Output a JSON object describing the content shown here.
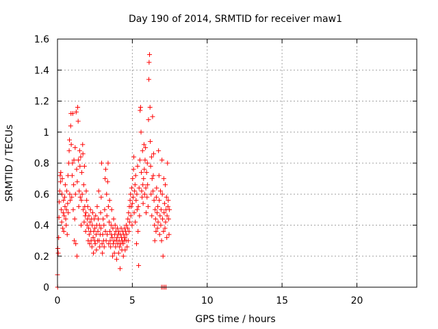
{
  "chart_data": {
    "type": "scatter",
    "title": "Day 190 of 2014, SRMTID for receiver maw1",
    "xlabel": "GPS time / hours",
    "ylabel": "SRMTID / TECUs",
    "xlim": [
      0,
      24
    ],
    "ylim": [
      0,
      1.6
    ],
    "xticks": [
      0,
      5,
      10,
      15,
      20
    ],
    "yticks": [
      0,
      0.2,
      0.4,
      0.6,
      0.8,
      1,
      1.2,
      1.4,
      1.6
    ],
    "ytick_labels": [
      "0",
      "0.2",
      "0.4",
      "0.6",
      "0.8",
      "1",
      "1.2",
      "1.4",
      "1.6"
    ],
    "grid": true,
    "marker": "+",
    "series": [
      {
        "color": "#ff0000",
        "points": [
          [
            0.0,
            0.08
          ],
          [
            0.02,
            0.25
          ],
          [
            0.05,
            0.22
          ],
          [
            0.08,
            0.32
          ],
          [
            0.1,
            0.45
          ],
          [
            0.12,
            0.55
          ],
          [
            0.15,
            0.62
          ],
          [
            0.18,
            0.72
          ],
          [
            0.2,
            0.68
          ],
          [
            0.22,
            0.74
          ],
          [
            0.25,
            0.5
          ],
          [
            0.28,
            0.42
          ],
          [
            0.3,
            0.6
          ],
          [
            0.32,
            0.7
          ],
          [
            0.35,
            0.38
          ],
          [
            0.38,
            0.48
          ],
          [
            0.4,
            0.56
          ],
          [
            0.42,
            0.36
          ],
          [
            0.45,
            0.46
          ],
          [
            0.48,
            0.58
          ],
          [
            0.5,
            0.52
          ],
          [
            0.52,
            0.66
          ],
          [
            0.55,
            0.44
          ],
          [
            0.58,
            0.4
          ],
          [
            0.6,
            0.5
          ],
          [
            0.62,
            0.62
          ],
          [
            0.65,
            0.34
          ],
          [
            0.68,
            0.54
          ],
          [
            0.7,
            0.72
          ],
          [
            0.72,
            0.48
          ],
          [
            0.75,
            0.8
          ],
          [
            0.78,
            0.88
          ],
          [
            0.8,
            0.95
          ],
          [
            0.82,
            0.6
          ],
          [
            0.85,
            0.56
          ],
          [
            0.88,
            1.04
          ],
          [
            0.9,
            1.12
          ],
          [
            0.92,
            0.92
          ],
          [
            0.95,
            0.58
          ],
          [
            0.98,
            0.72
          ],
          [
            1.0,
            0.8
          ],
          [
            1.02,
            1.12
          ],
          [
            1.05,
            0.5
          ],
          [
            1.08,
            0.66
          ],
          [
            1.1,
            0.82
          ],
          [
            1.12,
            0.3
          ],
          [
            1.15,
            0.44
          ],
          [
            1.18,
            0.9
          ],
          [
            1.2,
            0.6
          ],
          [
            1.22,
            0.28
          ],
          [
            1.25,
            1.13
          ],
          [
            1.28,
            0.76
          ],
          [
            1.3,
            0.2
          ],
          [
            1.32,
            0.68
          ],
          [
            1.35,
            1.16
          ],
          [
            1.38,
            1.07
          ],
          [
            1.4,
            0.82
          ],
          [
            1.42,
            0.52
          ],
          [
            1.45,
            0.62
          ],
          [
            1.48,
            0.88
          ],
          [
            1.5,
            0.78
          ],
          [
            1.52,
            0.58
          ],
          [
            1.55,
            0.84
          ],
          [
            1.58,
            0.4
          ],
          [
            1.6,
            0.56
          ],
          [
            1.62,
            0.74
          ],
          [
            1.65,
            0.6
          ],
          [
            1.68,
            0.92
          ],
          [
            1.7,
            0.86
          ],
          [
            1.72,
            0.5
          ],
          [
            1.75,
            0.66
          ],
          [
            1.78,
            0.42
          ],
          [
            1.8,
            0.78
          ],
          [
            1.82,
            0.52
          ],
          [
            1.85,
            0.46
          ],
          [
            1.88,
            0.36
          ],
          [
            1.9,
            0.48
          ],
          [
            1.92,
            0.62
          ],
          [
            1.95,
            0.56
          ],
          [
            1.98,
            0.4
          ],
          [
            2.0,
            0.44
          ],
          [
            2.02,
            0.52
          ],
          [
            2.05,
            0.3
          ],
          [
            2.08,
            0.38
          ],
          [
            2.1,
            0.46
          ],
          [
            2.12,
            0.34
          ],
          [
            2.15,
            0.28
          ],
          [
            2.18,
            0.42
          ],
          [
            2.2,
            0.5
          ],
          [
            2.22,
            0.36
          ],
          [
            2.25,
            0.3
          ],
          [
            2.28,
            0.44
          ],
          [
            2.3,
            0.26
          ],
          [
            2.32,
            0.4
          ],
          [
            2.35,
            0.48
          ],
          [
            2.38,
            0.32
          ],
          [
            2.4,
            0.22
          ],
          [
            2.42,
            0.36
          ],
          [
            2.45,
            0.44
          ],
          [
            2.48,
            0.3
          ],
          [
            2.5,
            0.38
          ],
          [
            2.52,
            0.28
          ],
          [
            2.55,
            0.46
          ],
          [
            2.58,
            0.34
          ],
          [
            2.6,
            0.24
          ],
          [
            2.62,
            0.4
          ],
          [
            2.65,
            0.52
          ],
          [
            2.68,
            0.3
          ],
          [
            2.7,
            0.36
          ],
          [
            2.72,
            0.44
          ],
          [
            2.75,
            0.62
          ],
          [
            2.78,
            0.3
          ],
          [
            2.8,
            0.4
          ],
          [
            2.82,
            0.26
          ],
          [
            2.85,
            0.34
          ],
          [
            2.88,
            0.48
          ],
          [
            2.9,
            0.38
          ],
          [
            2.92,
            0.58
          ],
          [
            2.95,
            0.8
          ],
          [
            2.98,
            0.28
          ],
          [
            3.0,
            0.22
          ],
          [
            3.02,
            0.34
          ],
          [
            3.05,
            0.44
          ],
          [
            3.08,
            0.3
          ],
          [
            3.1,
            0.4
          ],
          [
            3.12,
            0.26
          ],
          [
            3.15,
            0.5
          ],
          [
            3.18,
            0.7
          ],
          [
            3.2,
            0.36
          ],
          [
            3.22,
            0.76
          ],
          [
            3.25,
            0.3
          ],
          [
            3.28,
            0.6
          ],
          [
            3.3,
            0.46
          ],
          [
            3.32,
            0.34
          ],
          [
            3.35,
            0.68
          ],
          [
            3.38,
            0.8
          ],
          [
            3.4,
            0.52
          ],
          [
            3.42,
            0.28
          ],
          [
            3.45,
            0.42
          ],
          [
            3.48,
            0.56
          ],
          [
            3.5,
            0.36
          ],
          [
            3.52,
            0.3
          ],
          [
            3.55,
            0.26
          ],
          [
            3.58,
            0.4
          ],
          [
            3.6,
            0.34
          ],
          [
            3.62,
            0.5
          ],
          [
            3.65,
            0.32
          ],
          [
            3.68,
            0.2
          ],
          [
            3.7,
            0.38
          ],
          [
            3.72,
            0.28
          ],
          [
            3.75,
            0.44
          ],
          [
            3.78,
            0.3
          ],
          [
            3.8,
            0.22
          ],
          [
            3.82,
            0.34
          ],
          [
            3.85,
            0.4
          ],
          [
            3.88,
            0.26
          ],
          [
            3.9,
            0.36
          ],
          [
            3.92,
            0.3
          ],
          [
            3.95,
            0.18
          ],
          [
            3.98,
            0.32
          ],
          [
            4.0,
            0.38
          ],
          [
            4.02,
            0.28
          ],
          [
            4.05,
            0.34
          ],
          [
            4.08,
            0.22
          ],
          [
            4.1,
            0.36
          ],
          [
            4.12,
            0.3
          ],
          [
            4.15,
            0.26
          ],
          [
            4.18,
            0.12
          ],
          [
            4.2,
            0.34
          ],
          [
            4.22,
            0.28
          ],
          [
            4.25,
            0.38
          ],
          [
            4.28,
            0.32
          ],
          [
            4.3,
            0.24
          ],
          [
            4.32,
            0.3
          ],
          [
            4.35,
            0.36
          ],
          [
            4.38,
            0.28
          ],
          [
            4.4,
            0.2
          ],
          [
            4.42,
            0.34
          ],
          [
            4.45,
            0.3
          ],
          [
            4.48,
            0.38
          ],
          [
            4.5,
            0.32
          ],
          [
            4.52,
            0.24
          ],
          [
            4.55,
            0.36
          ],
          [
            4.58,
            0.3
          ],
          [
            4.6,
            0.4
          ],
          [
            4.62,
            0.34
          ],
          [
            4.65,
            0.26
          ],
          [
            4.68,
            0.38
          ],
          [
            4.7,
            0.44
          ],
          [
            4.72,
            0.3
          ],
          [
            4.75,
            0.48
          ],
          [
            4.78,
            0.36
          ],
          [
            4.8,
            0.52
          ],
          [
            4.82,
            0.42
          ],
          [
            4.85,
            0.56
          ],
          [
            4.88,
            0.6
          ],
          [
            4.9,
            0.46
          ],
          [
            4.92,
            0.52
          ],
          [
            4.95,
            0.64
          ],
          [
            4.98,
            0.4
          ],
          [
            5.0,
            0.54
          ],
          [
            5.02,
            0.7
          ],
          [
            5.05,
            0.58
          ],
          [
            5.08,
            0.76
          ],
          [
            5.1,
            0.84
          ],
          [
            5.12,
            0.48
          ],
          [
            5.15,
            0.62
          ],
          [
            5.18,
            0.66
          ],
          [
            5.2,
            0.42
          ],
          [
            5.22,
            0.72
          ],
          [
            5.25,
            0.56
          ],
          [
            5.28,
            0.28
          ],
          [
            5.3,
            0.6
          ],
          [
            5.32,
            0.5
          ],
          [
            5.35,
            0.78
          ],
          [
            5.38,
            0.36
          ],
          [
            5.4,
            0.52
          ],
          [
            5.42,
            0.14
          ],
          [
            5.45,
            0.64
          ],
          [
            5.48,
            0.46
          ],
          [
            5.5,
            0.82
          ],
          [
            5.52,
            1.14
          ],
          [
            5.55,
            1.16
          ],
          [
            5.58,
            1.0
          ],
          [
            5.6,
            0.74
          ],
          [
            5.62,
            0.62
          ],
          [
            5.65,
            0.58
          ],
          [
            5.68,
            0.88
          ],
          [
            5.7,
            0.66
          ],
          [
            5.72,
            0.54
          ],
          [
            5.75,
            0.7
          ],
          [
            5.78,
            0.92
          ],
          [
            5.8,
            0.76
          ],
          [
            5.82,
            0.6
          ],
          [
            5.85,
            0.82
          ],
          [
            5.88,
            0.9
          ],
          [
            5.9,
            0.64
          ],
          [
            5.92,
            0.48
          ],
          [
            5.95,
            0.74
          ],
          [
            5.98,
            0.58
          ],
          [
            6.0,
            0.8
          ],
          [
            6.02,
            0.66
          ],
          [
            6.05,
            0.52
          ],
          [
            6.08,
            1.08
          ],
          [
            6.1,
            1.34
          ],
          [
            6.12,
            1.45
          ],
          [
            6.15,
            1.5
          ],
          [
            6.18,
            1.16
          ],
          [
            6.2,
            0.94
          ],
          [
            6.22,
            0.78
          ],
          [
            6.25,
            0.6
          ],
          [
            6.28,
            0.84
          ],
          [
            6.3,
            0.46
          ],
          [
            6.32,
            0.7
          ],
          [
            6.35,
            1.1
          ],
          [
            6.38,
            0.62
          ],
          [
            6.4,
            0.72
          ],
          [
            6.42,
            0.86
          ],
          [
            6.45,
            0.56
          ],
          [
            6.48,
            0.4
          ],
          [
            6.5,
            0.3
          ],
          [
            6.52,
            0.5
          ],
          [
            6.55,
            0.44
          ],
          [
            6.58,
            0.36
          ],
          [
            6.6,
            0.58
          ],
          [
            6.62,
            0.64
          ],
          [
            6.65,
            0.48
          ],
          [
            6.68,
            0.38
          ],
          [
            6.7,
            0.52
          ],
          [
            6.72,
            0.42
          ],
          [
            6.75,
            0.88
          ],
          [
            6.78,
            0.72
          ],
          [
            6.8,
            0.56
          ],
          [
            6.82,
            0.34
          ],
          [
            6.85,
            0.46
          ],
          [
            6.88,
            0.62
          ],
          [
            6.9,
            0.4
          ],
          [
            6.92,
            0.5
          ],
          [
            6.95,
            0.3
          ],
          [
            6.98,
            0.82
          ],
          [
            7.0,
            0.6
          ],
          [
            7.02,
            0.44
          ],
          [
            7.05,
            0.2
          ],
          [
            7.08,
            0.36
          ],
          [
            7.1,
            0.7
          ],
          [
            7.12,
            0.48
          ],
          [
            7.15,
            0.54
          ],
          [
            7.18,
            0.38
          ],
          [
            7.2,
            0.66
          ],
          [
            7.22,
            0.42
          ],
          [
            7.25,
            0.5
          ],
          [
            7.28,
            0.58
          ],
          [
            7.3,
            0.32
          ],
          [
            7.32,
            0.46
          ],
          [
            7.35,
            0.8
          ],
          [
            7.38,
            0.52
          ],
          [
            7.4,
            0.56
          ],
          [
            7.42,
            0.44
          ],
          [
            7.45,
            0.34
          ],
          [
            7.48,
            0.5
          ],
          [
            6.95,
            0.0
          ],
          [
            7.05,
            0.0
          ],
          [
            7.15,
            0.0
          ],
          [
            7.25,
            0.0
          ],
          [
            0.01,
            0.0
          ]
        ]
      }
    ]
  }
}
